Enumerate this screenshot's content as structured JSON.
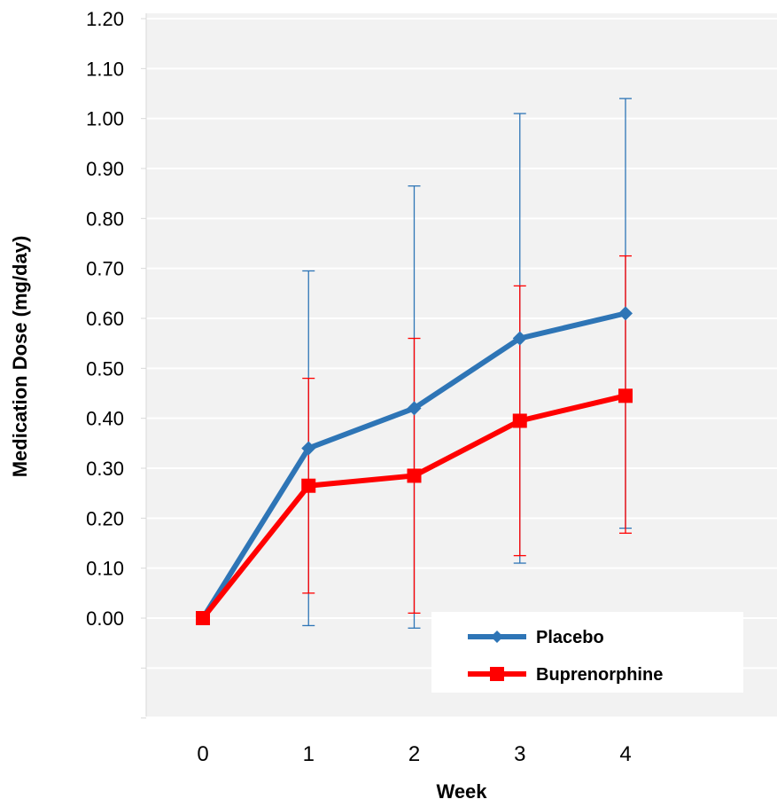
{
  "chart_data": {
    "type": "line",
    "xlabel": "Week",
    "ylabel": "Medication Dose (mg/day)",
    "x": [
      0,
      1,
      2,
      3,
      4
    ],
    "y_ticks": [
      "0.00",
      "0.10",
      "0.20",
      "0.30",
      "0.40",
      "0.50",
      "0.60",
      "0.70",
      "0.80",
      "0.90",
      "1.00",
      "1.10",
      "1.20"
    ],
    "ylim": [
      -0.2,
      1.2
    ],
    "grid": true,
    "legend_position": "bottom-right",
    "series": [
      {
        "name": "Placebo",
        "color": "#2E75B6",
        "marker": "diamond",
        "values": [
          0.0,
          0.34,
          0.42,
          0.56,
          0.61
        ],
        "error_low": [
          0.0,
          -0.015,
          -0.02,
          0.11,
          0.18
        ],
        "error_high": [
          0.0,
          0.695,
          0.865,
          1.01,
          1.04
        ]
      },
      {
        "name": "Buprenorphine",
        "color": "#FF0000",
        "marker": "square",
        "values": [
          0.0,
          0.265,
          0.285,
          0.395,
          0.445
        ],
        "error_low": [
          0.0,
          0.05,
          0.01,
          0.125,
          0.17
        ],
        "error_high": [
          0.0,
          0.48,
          0.56,
          0.665,
          0.725
        ]
      }
    ]
  }
}
